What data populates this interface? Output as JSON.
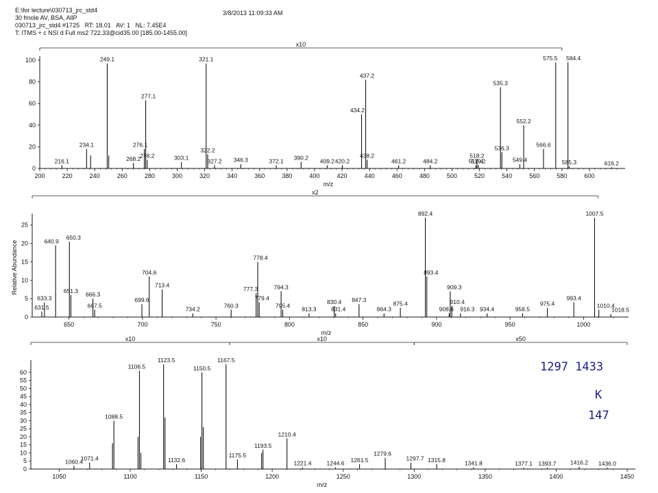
{
  "header": {
    "line1": "E:\\for lecture\\030713_jrc_std4",
    "line2": "30 fmole AV, BSA, AllP",
    "line3": "030713_jrc_std4 #1725   RT: 18.01   AV: 1   NL: 7.45E4",
    "line4": "T: ITMS + c NSI d Full ms2 722.33@cid35.00 [185.00-1455.00]",
    "datetime": "3/8/2013 11:09:33 AM"
  },
  "annotations": {
    "pair": "1297  1433",
    "residue": "K",
    "mass": "147"
  },
  "chart_data": [
    {
      "type": "bar",
      "xlabel": "m/z",
      "ylabel": "",
      "xlim": [
        200,
        620
      ],
      "ylim": [
        0,
        100
      ],
      "xticks": [
        200,
        220,
        240,
        260,
        280,
        300,
        320,
        340,
        360,
        380,
        400,
        420,
        440,
        460,
        480,
        500,
        520,
        540,
        560,
        580,
        600
      ],
      "yticks": [
        0,
        20,
        40,
        60,
        80,
        100
      ],
      "magnification": [
        {
          "label": "x10",
          "from": 200,
          "to": 580
        }
      ],
      "peaks": [
        {
          "x": 216.1,
          "y": 3,
          "label": "216.1"
        },
        {
          "x": 234.1,
          "y": 18,
          "label": "234.1"
        },
        {
          "x": 237.0,
          "y": 12,
          "label": ""
        },
        {
          "x": 249.1,
          "y": 97,
          "label": "249.1"
        },
        {
          "x": 250.2,
          "y": 12,
          "label": ""
        },
        {
          "x": 268.2,
          "y": 5,
          "label": "268.2"
        },
        {
          "x": 276.1,
          "y": 18,
          "label": "276.1"
        },
        {
          "x": 277.1,
          "y": 63,
          "label": "277.1"
        },
        {
          "x": 278.2,
          "y": 8,
          "label": "278.2"
        },
        {
          "x": 303.1,
          "y": 6,
          "label": "303.1"
        },
        {
          "x": 321.1,
          "y": 97,
          "label": "321.1"
        },
        {
          "x": 322.2,
          "y": 13,
          "label": "322.2"
        },
        {
          "x": 327.2,
          "y": 3,
          "label": "327.2"
        },
        {
          "x": 346.3,
          "y": 4,
          "label": "346.3"
        },
        {
          "x": 372.1,
          "y": 3,
          "label": "372.1"
        },
        {
          "x": 390.2,
          "y": 6,
          "label": "390.2"
        },
        {
          "x": 409.2,
          "y": 3,
          "label": "409.2"
        },
        {
          "x": 420.2,
          "y": 3,
          "label": "420.2"
        },
        {
          "x": 434.2,
          "y": 50,
          "label": "434.2"
        },
        {
          "x": 437.2,
          "y": 82,
          "label": "437.2"
        },
        {
          "x": 438.2,
          "y": 8,
          "label": "438.2"
        },
        {
          "x": 461.2,
          "y": 3,
          "label": "461.2"
        },
        {
          "x": 484.2,
          "y": 3,
          "label": "484.2"
        },
        {
          "x": 517.4,
          "y": 3,
          "label": "517.4"
        },
        {
          "x": 518.2,
          "y": 8,
          "label": "518.2"
        },
        {
          "x": 519.2,
          "y": 3,
          "label": "519.2"
        },
        {
          "x": 535.3,
          "y": 75,
          "label": "535.3"
        },
        {
          "x": 536.3,
          "y": 15,
          "label": "536.3"
        },
        {
          "x": 549.4,
          "y": 4,
          "label": "549.4"
        },
        {
          "x": 552.2,
          "y": 40,
          "label": "552.2"
        },
        {
          "x": 566.6,
          "y": 18,
          "label": "566.6"
        },
        {
          "x": 575.5,
          "y": 98,
          "label": "575.5"
        },
        {
          "x": 584.4,
          "y": 98,
          "label": "584.4"
        },
        {
          "x": 585.3,
          "y": 2,
          "label": "585.3"
        },
        {
          "x": 616.2,
          "y": 1,
          "label": "616.2"
        }
      ]
    },
    {
      "type": "bar",
      "xlabel": "m/z",
      "ylabel": "Relative Abundance",
      "xlim": [
        625,
        1025
      ],
      "ylim": [
        0,
        27
      ],
      "xticks": [
        650,
        700,
        750,
        800,
        850,
        900,
        950,
        1000
      ],
      "yticks": [
        0,
        5,
        10,
        15,
        20,
        25
      ],
      "magnification": [
        {
          "label": "x2",
          "from": 625,
          "to": 1010
        }
      ],
      "peaks": [
        {
          "x": 631.5,
          "y": 1.5,
          "label": "631.5"
        },
        {
          "x": 633.3,
          "y": 4,
          "label": "633.3"
        },
        {
          "x": 640.9,
          "y": 19.5,
          "label": "640.9"
        },
        {
          "x": 650.3,
          "y": 20.5,
          "label": "650.3"
        },
        {
          "x": 651.3,
          "y": 6,
          "label": "651.3"
        },
        {
          "x": 666.3,
          "y": 5,
          "label": "666.3"
        },
        {
          "x": 667.5,
          "y": 2,
          "label": "667.5"
        },
        {
          "x": 699.6,
          "y": 3.5,
          "label": "699.6"
        },
        {
          "x": 704.6,
          "y": 11,
          "label": "704.6"
        },
        {
          "x": 713.4,
          "y": 7.5,
          "label": "713.4"
        },
        {
          "x": 734.2,
          "y": 1,
          "label": "734.2"
        },
        {
          "x": 760.3,
          "y": 2,
          "label": "760.3"
        },
        {
          "x": 777.3,
          "y": 6.5,
          "label": "777.3"
        },
        {
          "x": 778.4,
          "y": 15,
          "label": "778.4"
        },
        {
          "x": 779.4,
          "y": 4,
          "label": "779.4"
        },
        {
          "x": 794.3,
          "y": 7,
          "label": "794.3"
        },
        {
          "x": 795.4,
          "y": 2,
          "label": "795.4"
        },
        {
          "x": 813.3,
          "y": 1,
          "label": "813.3"
        },
        {
          "x": 830.4,
          "y": 3,
          "label": "830.4"
        },
        {
          "x": 831.4,
          "y": 1,
          "label": "831.4"
        },
        {
          "x": 847.3,
          "y": 3.5,
          "label": "847.3"
        },
        {
          "x": 864.3,
          "y": 1,
          "label": "864.3"
        },
        {
          "x": 875.4,
          "y": 2.5,
          "label": "875.4"
        },
        {
          "x": 892.4,
          "y": 27,
          "label": "892.4"
        },
        {
          "x": 893.4,
          "y": 11,
          "label": "893.4"
        },
        {
          "x": 908.6,
          "y": 1,
          "label": "908.6"
        },
        {
          "x": 909.3,
          "y": 7,
          "label": "909.3"
        },
        {
          "x": 910.4,
          "y": 3,
          "label": "910.4"
        },
        {
          "x": 916.3,
          "y": 1,
          "label": "916.3"
        },
        {
          "x": 934.4,
          "y": 1,
          "label": "934.4"
        },
        {
          "x": 958.5,
          "y": 1,
          "label": "958.5"
        },
        {
          "x": 975.4,
          "y": 2.5,
          "label": "975.4"
        },
        {
          "x": 993.4,
          "y": 4,
          "label": "993.4"
        },
        {
          "x": 1007.5,
          "y": 27,
          "label": "1007.5"
        },
        {
          "x": 1010.4,
          "y": 2,
          "label": "1010.4"
        },
        {
          "x": 1018.5,
          "y": 0.8,
          "label": "1018.5"
        }
      ]
    },
    {
      "type": "bar",
      "xlabel": "m/z",
      "ylabel": "",
      "xlim": [
        1030,
        1450
      ],
      "ylim": [
        0,
        65
      ],
      "xticks": [
        1050,
        1100,
        1150,
        1200,
        1250,
        1300,
        1350,
        1400,
        1450
      ],
      "yticks": [
        0,
        5,
        10,
        15,
        20,
        25,
        30,
        35,
        40,
        45,
        50,
        55,
        60
      ],
      "magnification": [
        {
          "label": "x10",
          "from": 1030,
          "to": 1170
        },
        {
          "label": "x10",
          "from": 1170,
          "to": 1300
        },
        {
          "label": "x50",
          "from": 1300,
          "to": 1450
        }
      ],
      "peaks": [
        {
          "x": 1060.4,
          "y": 2,
          "label": "1060.4"
        },
        {
          "x": 1071.4,
          "y": 4,
          "label": "1071.4"
        },
        {
          "x": 1087.5,
          "y": 16,
          "label": ""
        },
        {
          "x": 1088.5,
          "y": 30,
          "label": "1088.5"
        },
        {
          "x": 1105.5,
          "y": 20,
          "label": ""
        },
        {
          "x": 1106.5,
          "y": 61,
          "label": "1106.5"
        },
        {
          "x": 1107.5,
          "y": 10,
          "label": ""
        },
        {
          "x": 1123.5,
          "y": 65,
          "label": "1123.5"
        },
        {
          "x": 1124.5,
          "y": 32,
          "label": ""
        },
        {
          "x": 1132.6,
          "y": 3,
          "label": "1132.6"
        },
        {
          "x": 1149.5,
          "y": 20,
          "label": ""
        },
        {
          "x": 1150.5,
          "y": 60,
          "label": "1150.5"
        },
        {
          "x": 1151.5,
          "y": 26,
          "label": ""
        },
        {
          "x": 1167.5,
          "y": 65,
          "label": "1167.5"
        },
        {
          "x": 1175.5,
          "y": 6,
          "label": "1175.5"
        },
        {
          "x": 1192.5,
          "y": 10,
          "label": ""
        },
        {
          "x": 1193.5,
          "y": 12,
          "label": "1193.5"
        },
        {
          "x": 1210.4,
          "y": 19,
          "label": "1210.4"
        },
        {
          "x": 1221.4,
          "y": 1,
          "label": "1221.4"
        },
        {
          "x": 1244.6,
          "y": 1,
          "label": "1244.6"
        },
        {
          "x": 1261.5,
          "y": 3,
          "label": "1261.5"
        },
        {
          "x": 1279.6,
          "y": 7,
          "label": "1279.6"
        },
        {
          "x": 1297.7,
          "y": 4,
          "label": "1297.7"
        },
        {
          "x": 1315.8,
          "y": 3,
          "label": "1315.8"
        },
        {
          "x": 1341.8,
          "y": 1,
          "label": "1341.8"
        },
        {
          "x": 1377.1,
          "y": 0.8,
          "label": "1377.1"
        },
        {
          "x": 1393.7,
          "y": 0.8,
          "label": "1393.7"
        },
        {
          "x": 1416.2,
          "y": 1.5,
          "label": "1416.2"
        },
        {
          "x": 1436.0,
          "y": 0.8,
          "label": "1436.0"
        }
      ]
    }
  ]
}
